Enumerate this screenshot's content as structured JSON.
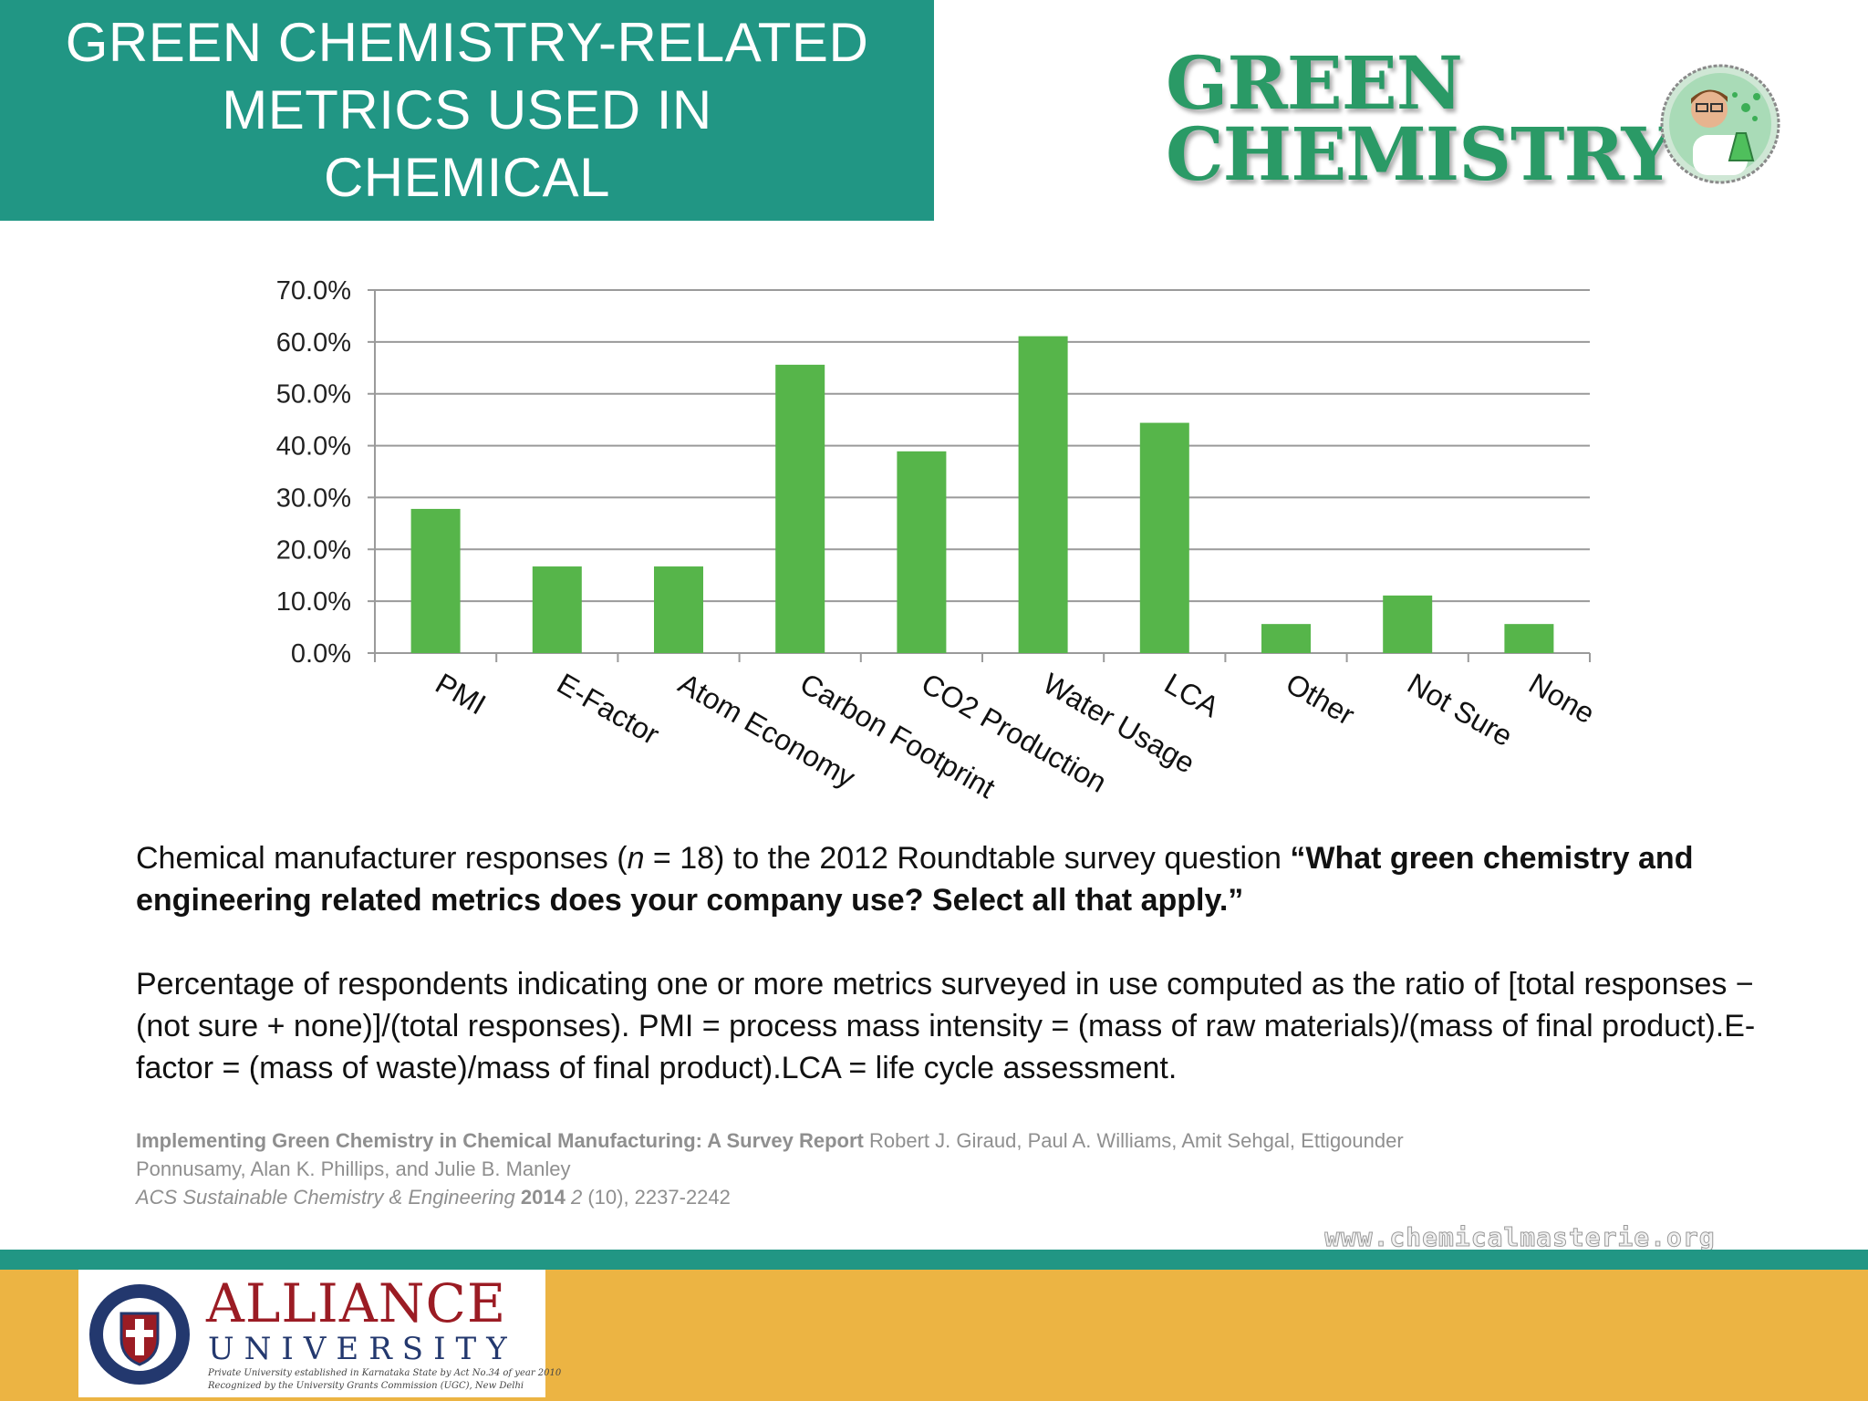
{
  "header": {
    "title_lines": [
      "GREEN CHEMISTRY-RELATED",
      "METRICS USED IN",
      "CHEMICAL"
    ],
    "brand_line1": "GREEN",
    "brand_line2": "CHEMISTRY"
  },
  "chart_data": {
    "type": "bar",
    "title": "",
    "xlabel": "",
    "ylabel": "",
    "categories": [
      "PMI",
      "E-Factor",
      "Atom Economy",
      "Carbon Footprint",
      "CO2 Production",
      "Water Usage",
      "LCA",
      "Other",
      "Not Sure",
      "None"
    ],
    "values": [
      27.8,
      16.7,
      16.7,
      55.6,
      38.9,
      61.1,
      44.4,
      5.6,
      11.1,
      5.6
    ],
    "ylim": [
      0,
      70
    ],
    "yticks": [
      "0.0%",
      "10.0%",
      "20.0%",
      "30.0%",
      "40.0%",
      "50.0%",
      "60.0%",
      "70.0%"
    ],
    "grid": true,
    "bar_color": "#56b54a"
  },
  "caption": {
    "p1_text": "Chemical manufacturer responses (",
    "p1_n": "n",
    "p1_mid": " = 18) to the 2012 Roundtable survey question ",
    "p1_bold": "“What green chemistry and engineering related metrics does your company use? Select all that apply.”",
    "p2": "Percentage of respondents indicating one or more metrics surveyed in use computed as the ratio of [total responses − (not sure + none)]/(total responses). PMI = process mass intensity = (mass of raw materials)/(mass of final product).E-factor = (mass of waste)/mass of final product).LCA = life cycle assessment."
  },
  "citation": {
    "title": "Implementing Green Chemistry in Chemical Manufacturing: A Survey Report",
    "authors": " Robert J. Giraud, Paul A. Williams, Amit Sehgal, Ettigounder Ponnusamy, Alan K. Phillips, and Julie B. Manley",
    "journal": "ACS Sustainable Chemistry & Engineering",
    "year": "2014",
    "volume": "2",
    "rest": " (10), 2237-2242"
  },
  "footer": {
    "website": "www.chemicalmasterie.org",
    "logo_alliance": "ALLIANCE",
    "logo_university": "UNIVERSITY",
    "logo_sub1": "Private University established in Karnataka State by Act No.34 of year 2010",
    "logo_sub2": "Recognized by the University Grants Commission (UGC), New Delhi"
  }
}
